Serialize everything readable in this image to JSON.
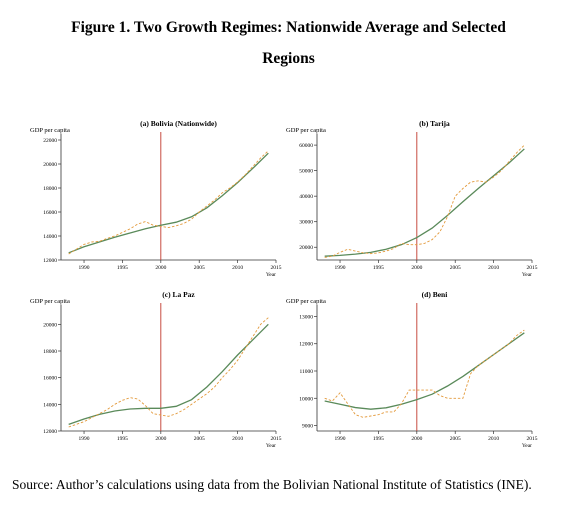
{
  "figure": {
    "title_line1": "Figure 1. Two Growth Regimes: Nationwide Average and Selected",
    "title_line2": "Regions",
    "source": "Source: Author’s calculations using data from the Bolivian National Institute of Statistics (INE)."
  },
  "colors": {
    "trend": "#5a8a5a",
    "actual": "#e39a3c",
    "vline": "#c0392b",
    "axis": "#333333"
  },
  "chart_data": [
    {
      "type": "line",
      "title": "(a) Bolivia (Nationwide)",
      "ylabel": "GDP per capita",
      "xlabel": "Year",
      "xlim": [
        1987,
        2015
      ],
      "ylim": [
        12000,
        22000
      ],
      "xticks": [
        1990,
        1995,
        2000,
        2005,
        2010,
        2015
      ],
      "yticks": [
        12000,
        14000,
        16000,
        18000,
        20000,
        22000
      ],
      "vline_x": 2000,
      "series": [
        {
          "style": "trend",
          "x": [
            1988,
            1990,
            1992,
            1994,
            1996,
            1998,
            2000,
            2002,
            2004,
            2006,
            2008,
            2010,
            2012,
            2014
          ],
          "y": [
            12600,
            13100,
            13500,
            13900,
            14250,
            14600,
            14900,
            15150,
            15600,
            16350,
            17350,
            18450,
            19650,
            20900
          ]
        },
        {
          "style": "actual",
          "x": [
            1988,
            1989,
            1990,
            1991,
            1992,
            1993,
            1994,
            1995,
            1996,
            1997,
            1998,
            1999,
            2000,
            2001,
            2002,
            2003,
            2004,
            2005,
            2006,
            2007,
            2008,
            2009,
            2010,
            2011,
            2012,
            2013,
            2014
          ],
          "y": [
            12500,
            12900,
            13300,
            13500,
            13550,
            13800,
            14000,
            14300,
            14600,
            15000,
            15200,
            14900,
            14800,
            14700,
            14850,
            15050,
            15400,
            16000,
            16500,
            17000,
            17600,
            18000,
            18500,
            19100,
            19800,
            20500,
            21100
          ]
        }
      ]
    },
    {
      "type": "line",
      "title": "(b) Tarija",
      "ylabel": "GDP per capita",
      "xlabel": "Year",
      "xlim": [
        1987,
        2015
      ],
      "ylim": [
        15000,
        62000
      ],
      "xticks": [
        1990,
        1995,
        2000,
        2005,
        2010,
        2015
      ],
      "yticks": [
        20000,
        30000,
        40000,
        50000,
        60000
      ],
      "vline_x": 2000,
      "series": [
        {
          "style": "trend",
          "x": [
            1988,
            1990,
            1992,
            1994,
            1996,
            1998,
            2000,
            2002,
            2004,
            2006,
            2008,
            2010,
            2012,
            2014
          ],
          "y": [
            16500,
            16800,
            17300,
            18000,
            19200,
            21000,
            23800,
            27500,
            32500,
            37800,
            43000,
            48000,
            53000,
            58500
          ]
        },
        {
          "style": "actual",
          "x": [
            1988,
            1989,
            1990,
            1991,
            1992,
            1993,
            1994,
            1995,
            1996,
            1997,
            1998,
            1999,
            2000,
            2001,
            2002,
            2003,
            2004,
            2005,
            2006,
            2007,
            2008,
            2009,
            2010,
            2011,
            2012,
            2013,
            2014
          ],
          "y": [
            16000,
            16500,
            18000,
            19200,
            18500,
            17800,
            17500,
            17800,
            18500,
            19500,
            21500,
            21000,
            21000,
            21500,
            23000,
            26000,
            32000,
            40000,
            43000,
            45500,
            46000,
            45500,
            47500,
            50000,
            53500,
            57000,
            60000
          ]
        }
      ]
    },
    {
      "type": "line",
      "title": "(c) La Paz",
      "ylabel": "GDP per capita",
      "xlabel": "Year",
      "xlim": [
        1987,
        2015
      ],
      "ylim": [
        12000,
        21000
      ],
      "xticks": [
        1990,
        1995,
        2000,
        2005,
        2010,
        2015
      ],
      "yticks": [
        12000,
        14000,
        16000,
        18000,
        20000
      ],
      "vline_x": 2000,
      "series": [
        {
          "style": "trend",
          "x": [
            1988,
            1990,
            1992,
            1994,
            1996,
            1998,
            2000,
            2002,
            2004,
            2006,
            2008,
            2010,
            2012,
            2014
          ],
          "y": [
            12500,
            12900,
            13250,
            13500,
            13650,
            13700,
            13700,
            13850,
            14350,
            15300,
            16450,
            17700,
            18850,
            20000
          ]
        },
        {
          "style": "actual",
          "x": [
            1988,
            1989,
            1990,
            1991,
            1992,
            1993,
            1994,
            1995,
            1996,
            1997,
            1998,
            1999,
            2000,
            2001,
            2002,
            2003,
            2004,
            2005,
            2006,
            2007,
            2008,
            2009,
            2010,
            2011,
            2012,
            2013,
            2014
          ],
          "y": [
            12300,
            12500,
            12700,
            13000,
            13300,
            13600,
            14000,
            14300,
            14500,
            14400,
            13900,
            13300,
            13200,
            13100,
            13300,
            13600,
            14000,
            14400,
            14800,
            15300,
            16000,
            16600,
            17300,
            18200,
            19100,
            20000,
            20500
          ]
        }
      ]
    },
    {
      "type": "line",
      "title": "(d) Beni",
      "ylabel": "GDP per capita",
      "xlabel": "Year",
      "xlim": [
        1987,
        2015
      ],
      "ylim": [
        8800,
        13200
      ],
      "xticks": [
        1990,
        1995,
        2000,
        2005,
        2010,
        2015
      ],
      "yticks": [
        9000,
        10000,
        11000,
        12000,
        13000
      ],
      "vline_x": 2000,
      "series": [
        {
          "style": "trend",
          "x": [
            1988,
            1990,
            1992,
            1994,
            1996,
            1998,
            2000,
            2002,
            2004,
            2006,
            2008,
            2010,
            2012,
            2014
          ],
          "y": [
            9900,
            9780,
            9660,
            9600,
            9650,
            9780,
            9950,
            10150,
            10450,
            10800,
            11200,
            11600,
            12000,
            12400
          ]
        },
        {
          "style": "actual",
          "x": [
            1988,
            1989,
            1990,
            1991,
            1992,
            1993,
            1994,
            1995,
            1996,
            1997,
            1998,
            1999,
            2000,
            2001,
            2002,
            2003,
            2004,
            2005,
            2006,
            2007,
            2008,
            2009,
            2010,
            2011,
            2012,
            2013,
            2014
          ],
          "y": [
            10000,
            9900,
            10200,
            9800,
            9400,
            9300,
            9350,
            9400,
            9500,
            9500,
            9800,
            10300,
            10300,
            10300,
            10300,
            10100,
            10000,
            10000,
            10000,
            10900,
            11200,
            11400,
            11600,
            11800,
            12000,
            12300,
            12500
          ]
        }
      ]
    }
  ]
}
